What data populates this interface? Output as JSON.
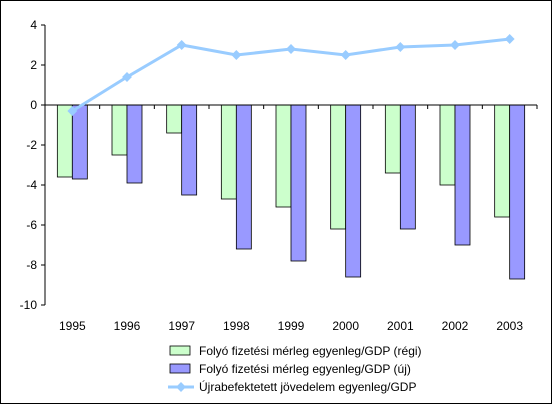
{
  "chart_data": {
    "type": "bar",
    "categories": [
      "1995",
      "1996",
      "1997",
      "1998",
      "1999",
      "2000",
      "2001",
      "2002",
      "2003"
    ],
    "series": [
      {
        "name": "Folyó fizetési mérleg egyenleg/GDP (régi)",
        "kind": "bar",
        "color": "#ccffcc",
        "values": [
          -3.6,
          -2.5,
          -1.4,
          -4.7,
          -5.1,
          -6.2,
          -3.4,
          -4.0,
          -5.6
        ]
      },
      {
        "name": "Folyó fizetési mérleg egyenleg/GDP (új)",
        "kind": "bar",
        "color": "#9999ff",
        "values": [
          -3.7,
          -3.9,
          -4.5,
          -7.2,
          -7.8,
          -8.6,
          -6.2,
          -7.0,
          -8.7
        ]
      },
      {
        "name": "Újrabefektetett jövedelem egyenleg/GDP",
        "kind": "line",
        "color": "#99ccff",
        "values": [
          -0.3,
          1.4,
          3.0,
          2.5,
          2.8,
          2.5,
          2.9,
          3.0,
          3.3
        ]
      }
    ],
    "ylim": [
      -10,
      4
    ],
    "yticks": [
      4,
      2,
      0,
      -2,
      -4,
      -6,
      -8,
      -10
    ],
    "xlabel": "",
    "ylabel": "",
    "title": "",
    "legend_position": "bottom",
    "grid": false
  }
}
